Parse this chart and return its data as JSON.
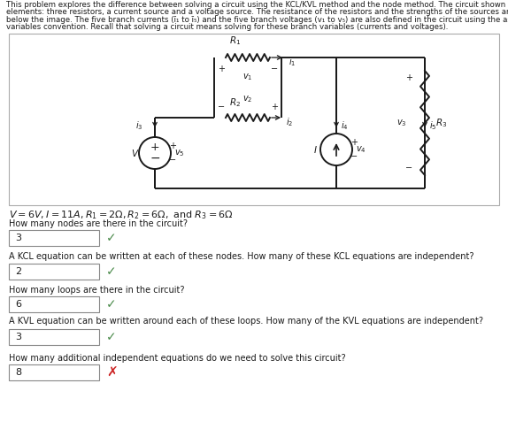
{
  "header": "This problem explores the difference between solving a circuit using the KCL/KVL method and the node method. The circuit shown below has five\nelements: three resistors, a current source and a voltage source. The resistance of the resistors and the strengths of the sources are all given\nbelow the image. The five branch currents (i₁ to i₅) and the five branch voltages (v₁ to v₅) are also defined in the circuit using the associated\nvariables convention. Recall that solving a circuit means solving for these branch variables (currents and voltages).",
  "q1": "How many nodes are there in the circuit?",
  "a1": "3",
  "a1_correct": true,
  "q2": "A KCL equation can be written at each of these nodes. How many of these KCL equations are independent?",
  "a2": "2",
  "a2_correct": true,
  "q3": "How many loops are there in the circuit?",
  "a3": "6",
  "a3_correct": true,
  "q4": "A KVL equation can be written around each of these loops. How many of the KVL equations are independent?",
  "a4": "3",
  "a4_correct": true,
  "q5": "How many additional independent equations do we need to solve this circuit?",
  "a5": "8",
  "a5_correct": false,
  "bg_color": "#ffffff",
  "wire_color": "#1a1a1a",
  "text_color": "#1a1a1a",
  "box_edge_color": "#aaaaaa",
  "input_edge_color": "#888888",
  "check_color": "#4a8a4a",
  "cross_color": "#cc2222"
}
